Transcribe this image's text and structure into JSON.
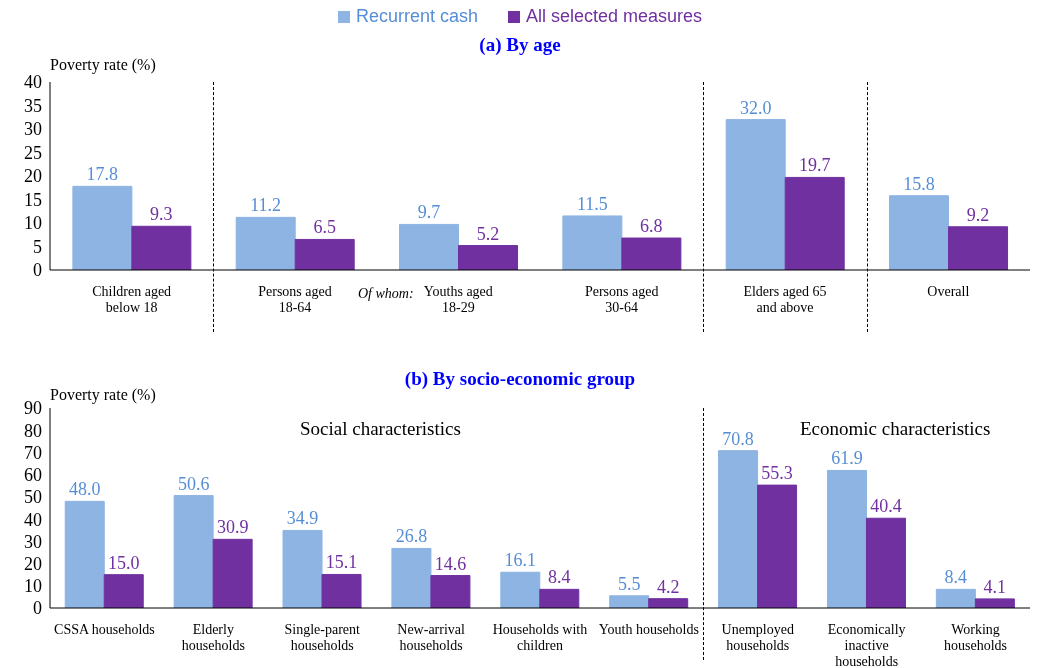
{
  "chart_data": [
    {
      "type": "bar",
      "title": "(a) By age",
      "ylabel": "Poverty rate (%)",
      "categories": [
        "Children aged below 18",
        "Persons aged 18-64",
        "Youths aged 18-29",
        "Persons aged 30-64",
        "Elders aged 65 and above",
        "Overall"
      ],
      "series": [
        {
          "name": "Recurrent cash",
          "color": "#8db4e2",
          "values": [
            17.8,
            11.2,
            9.7,
            11.5,
            32.0,
            15.8
          ],
          "value_labels": [
            "17.8",
            "11.2",
            "9.7",
            "11.5",
            "32.0",
            "15.8"
          ]
        },
        {
          "name": "All selected measures",
          "color": "#7030a0",
          "values": [
            9.3,
            6.5,
            5.2,
            6.8,
            19.7,
            9.2
          ],
          "value_labels": [
            "9.3",
            "6.5",
            "5.2",
            "6.8",
            "19.7",
            "9.2"
          ]
        }
      ],
      "ylim": [
        0,
        40
      ],
      "yticks": [
        0,
        5,
        10,
        15,
        20,
        25,
        30,
        35,
        40
      ],
      "grid": false,
      "legend": "top",
      "annotations": [
        "Of whom:"
      ]
    },
    {
      "type": "bar",
      "title": "(b) By socio-economic group",
      "ylabel": "Poverty rate  (%)",
      "categories": [
        "CSSA households",
        "Elderly households",
        "Single-parent households",
        "New-arrival households",
        "Households with children",
        "Youth households",
        "Unemployed households",
        "Economically inactive households",
        "Working households"
      ],
      "series": [
        {
          "color": "#8db4e2",
          "values": [
            48.0,
            50.6,
            34.9,
            26.8,
            16.1,
            5.5,
            70.8,
            61.9,
            8.4
          ],
          "value_labels": [
            "48.0",
            "50.6",
            "34.9",
            "26.8",
            "16.1",
            "5.5",
            "70.8",
            "61.9",
            "8.4"
          ]
        },
        {
          "color": "#7030a0",
          "values": [
            15.0,
            30.9,
            15.1,
            14.6,
            8.4,
            4.2,
            55.3,
            40.4,
            4.1
          ],
          "value_labels": [
            "15.0",
            "30.9",
            "15.1",
            "14.6",
            "8.4",
            "4.2",
            "55.3",
            "40.4",
            "4.1"
          ]
        }
      ],
      "ylim": [
        0,
        90
      ],
      "yticks": [
        0,
        10,
        20,
        30,
        40,
        50,
        60,
        70,
        80,
        90
      ],
      "grid": false,
      "annotations": [
        "Social characteristics",
        "Economic characteristics"
      ]
    }
  ]
}
